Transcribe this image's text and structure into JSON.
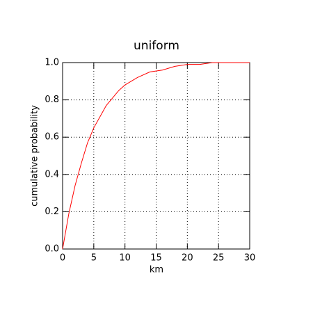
{
  "chart_data": {
    "type": "line",
    "title": "uniform",
    "xlabel": "km",
    "ylabel": "cumulative probability",
    "x": [
      0,
      1,
      2,
      3,
      4,
      5,
      6,
      7,
      8,
      9,
      10,
      12,
      14,
      16,
      18,
      20,
      22,
      24,
      26,
      28,
      30
    ],
    "series": [
      {
        "color": "#ff0000",
        "values": [
          0,
          0.19,
          0.34,
          0.46,
          0.57,
          0.65,
          0.71,
          0.77,
          0.81,
          0.85,
          0.88,
          0.92,
          0.95,
          0.96,
          0.98,
          0.99,
          0.99,
          1.0,
          1.0,
          1.0,
          1.0
        ]
      }
    ],
    "xlim": [
      0,
      30
    ],
    "xticks": [
      0,
      5,
      10,
      15,
      20,
      25,
      30
    ],
    "ylim": [
      0,
      1
    ],
    "yticks": [
      {
        "value": 0,
        "label": "0.0"
      },
      0.2,
      0.4,
      0.6,
      0.8,
      {
        "value": 1,
        "label": "1.0"
      }
    ],
    "grid": true
  }
}
